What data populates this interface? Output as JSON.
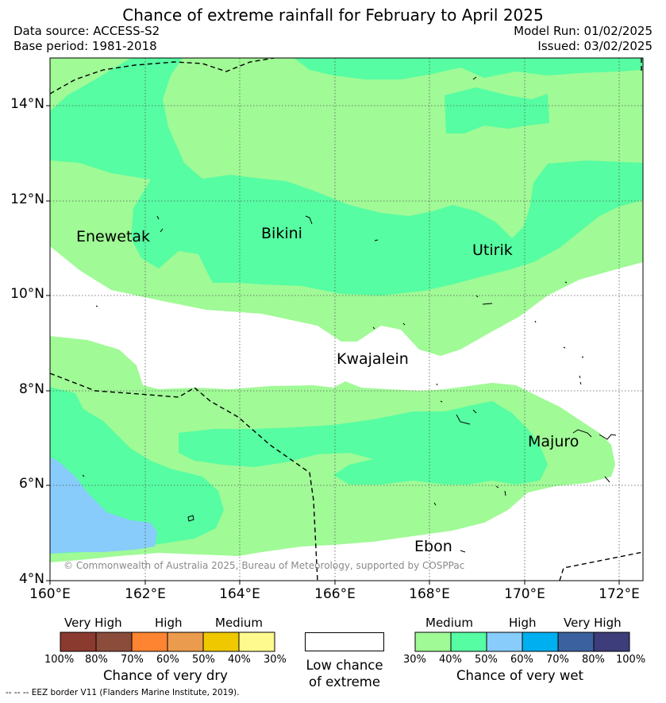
{
  "title": "Chance of extreme rainfall for February to April 2025",
  "header": {
    "data_source": "Data source: ACCESS-S2",
    "base_period": "Base period: 1981-2018",
    "model_run": "Model Run: 01/02/2025",
    "issued": "Issued: 03/02/2025"
  },
  "map": {
    "lat_labels": [
      "14°N",
      "12°N",
      "10°N",
      "8°N",
      "6°N",
      "4°N"
    ],
    "lon_labels": [
      "160°E",
      "162°E",
      "164°E",
      "166°E",
      "168°E",
      "170°E",
      "172°E"
    ],
    "places": [
      "Enewetak",
      "Bikini",
      "Utirik",
      "Kwajalein",
      "Majuro",
      "Ebon"
    ],
    "copyright": "© Commonwealth of Australia 2025, Bureau of Meteorology, supported by COSPPac",
    "colors": {
      "wet_medium": "#a0fa96",
      "wet_high": "#56fda2",
      "wet_veryhigh_low": "#87ccfa"
    }
  },
  "legend": {
    "dry": {
      "headers": [
        "Very High",
        "High",
        "Medium"
      ],
      "colors": [
        "#8b3a30",
        "#8b4c3c",
        "#fe8432",
        "#eb9b4d",
        "#f0c800",
        "#fefa8e"
      ],
      "pcts": [
        "100%",
        "80%",
        "70%",
        "60%",
        "50%",
        "40%",
        "30%"
      ],
      "caption": "Chance of very dry"
    },
    "low": {
      "caption_line1": "Low chance",
      "caption_line2": "of extreme"
    },
    "wet": {
      "headers": [
        "Medium",
        "High",
        "Very High"
      ],
      "colors": [
        "#a0fa96",
        "#56fda2",
        "#87ccfa",
        "#00aff0",
        "#3b629e",
        "#3d3d7b"
      ],
      "pcts": [
        "30%",
        "40%",
        "50%",
        "60%",
        "70%",
        "80%",
        "100%"
      ],
      "caption": "Chance of very wet"
    }
  },
  "footnote": "-- -- -- EEZ border V11 (Flanders Marine Institute, 2019)."
}
